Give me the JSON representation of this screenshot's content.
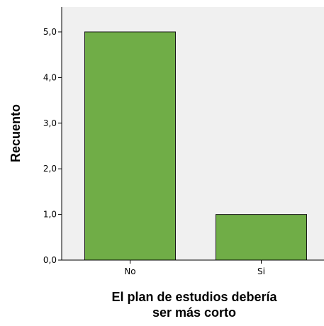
{
  "chart_data": {
    "type": "bar",
    "title": "",
    "categories": [
      "No",
      "Si"
    ],
    "values": [
      5,
      1
    ],
    "xlabel_lines": [
      "El plan de estudios debería",
      "ser más corto"
    ],
    "ylabel": "Recuento",
    "ylim": [
      0,
      5.5
    ],
    "yticks": [
      0,
      1,
      2,
      3,
      4,
      5
    ],
    "ytick_labels": [
      "0,0",
      "1,0",
      "2,0",
      "3,0",
      "4,0",
      "5,0"
    ],
    "grid": false,
    "legend": "none",
    "colors": {
      "plot_background": "#f0f0f0",
      "bar_fill": "#70ad47",
      "bar_stroke": "#1a1a1a",
      "axis": "#000000"
    }
  }
}
